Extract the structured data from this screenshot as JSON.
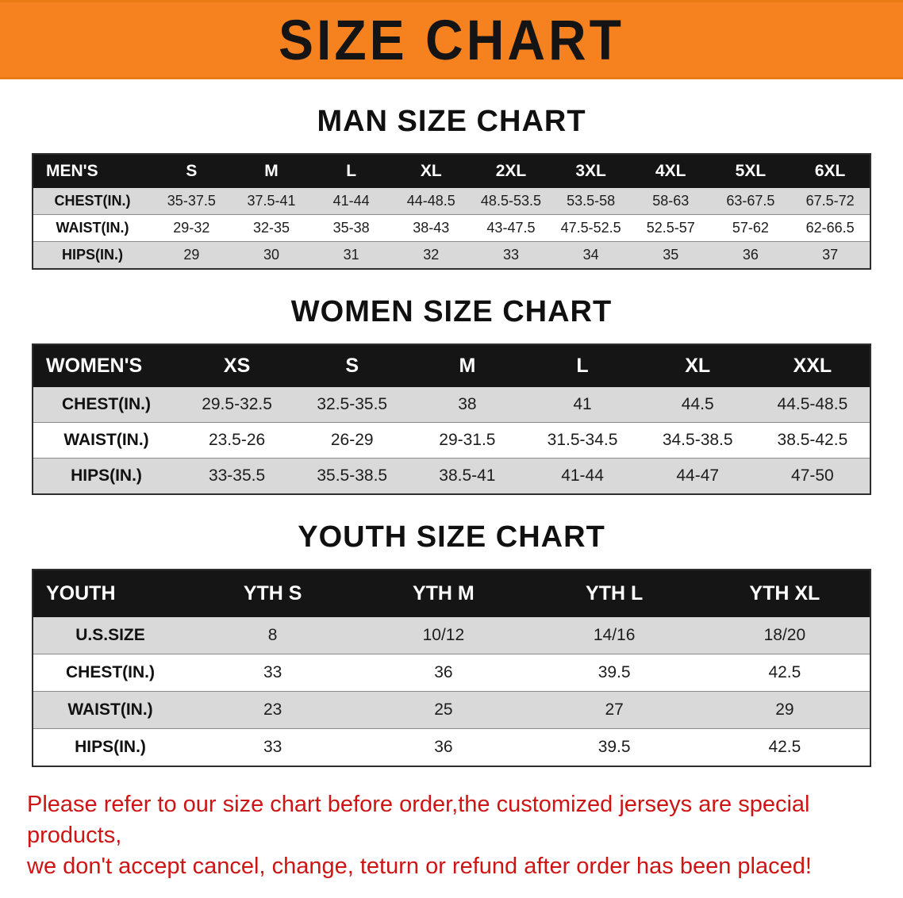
{
  "banner": {
    "title": "SIZE CHART"
  },
  "sections": [
    {
      "id": "mens",
      "heading": "MAN SIZE CHART",
      "table": {
        "header": [
          "MEN'S",
          "S",
          "M",
          "L",
          "XL",
          "2XL",
          "3XL",
          "4XL",
          "5XL",
          "6XL"
        ],
        "rows": [
          [
            "CHEST(IN.)",
            "35-37.5",
            "37.5-41",
            "41-44",
            "44-48.5",
            "48.5-53.5",
            "53.5-58",
            "58-63",
            "63-67.5",
            "67.5-72"
          ],
          [
            "WAIST(IN.)",
            "29-32",
            "32-35",
            "35-38",
            "38-43",
            "43-47.5",
            "47.5-52.5",
            "52.5-57",
            "57-62",
            "62-66.5"
          ],
          [
            "HIPS(IN.)",
            "29",
            "30",
            "31",
            "32",
            "33",
            "34",
            "35",
            "36",
            "37"
          ]
        ]
      }
    },
    {
      "id": "womens",
      "heading": "WOMEN SIZE CHART",
      "table": {
        "header": [
          "WOMEN'S",
          "XS",
          "S",
          "M",
          "L",
          "XL",
          "XXL"
        ],
        "rows": [
          [
            "CHEST(IN.)",
            "29.5-32.5",
            "32.5-35.5",
            "38",
            "41",
            "44.5",
            "44.5-48.5"
          ],
          [
            "WAIST(IN.)",
            "23.5-26",
            "26-29",
            "29-31.5",
            "31.5-34.5",
            "34.5-38.5",
            "38.5-42.5"
          ],
          [
            "HIPS(IN.)",
            "33-35.5",
            "35.5-38.5",
            "38.5-41",
            "41-44",
            "44-47",
            "47-50"
          ]
        ]
      }
    },
    {
      "id": "youth",
      "heading": "YOUTH SIZE CHART",
      "table": {
        "header": [
          "YOUTH",
          "YTH S",
          "YTH M",
          "YTH L",
          "YTH XL"
        ],
        "rows": [
          [
            "U.S.SIZE",
            "8",
            "10/12",
            "14/16",
            "18/20"
          ],
          [
            "CHEST(IN.)",
            "33",
            "36",
            "39.5",
            "42.5"
          ],
          [
            "WAIST(IN.)",
            "23",
            "25",
            "27",
            "29"
          ],
          [
            "HIPS(IN.)",
            "33",
            "36",
            "39.5",
            "42.5"
          ]
        ]
      }
    }
  ],
  "disclaimer": {
    "line1": "Please refer to our size chart before order,the customized jerseys are special products,",
    "line2": "we don't accept cancel, change, teturn or refund after order has been placed!"
  },
  "colors": {
    "banner_bg": "#f5821f",
    "table_header_bg": "#151515",
    "row_alt_gray": "#d9d9d9",
    "disclaimer_red": "#ce1414"
  }
}
